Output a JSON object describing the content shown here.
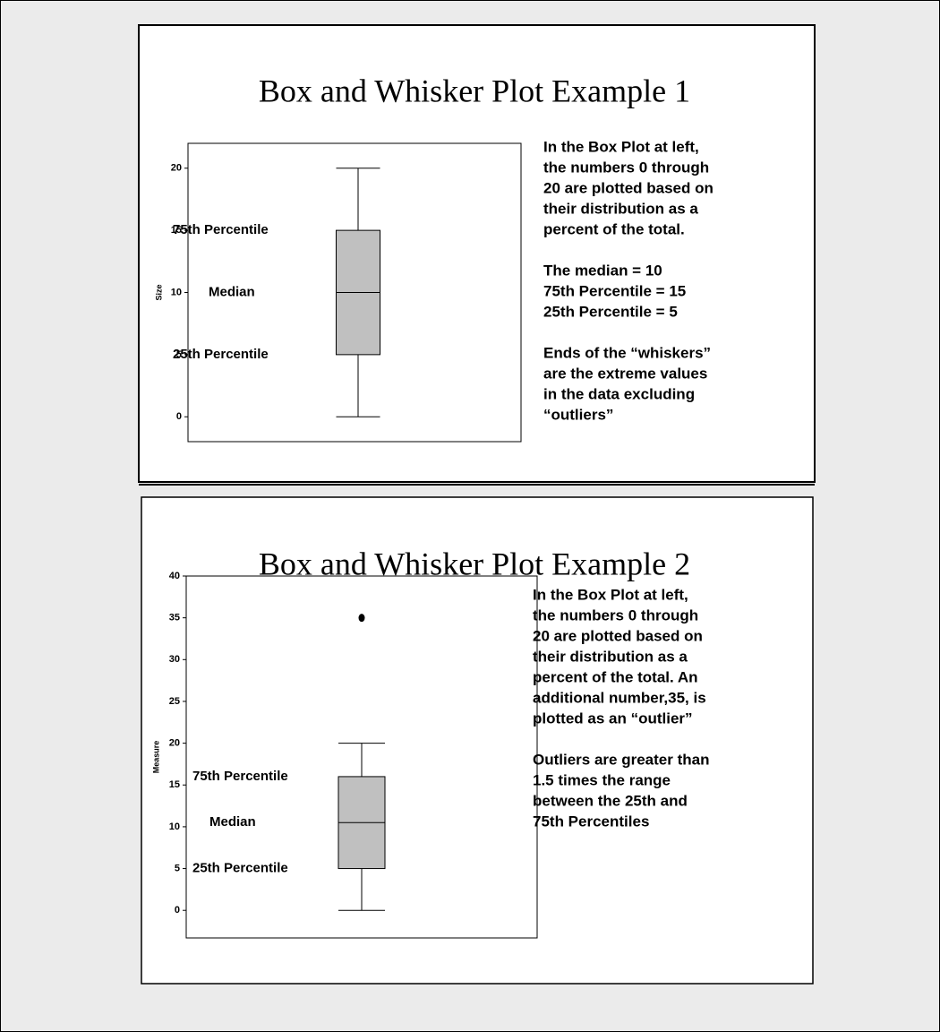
{
  "chart_data": [
    {
      "type": "box",
      "title": "Box and Whisker Plot Example 1",
      "y_label": "Size",
      "ylim": [
        -2,
        22
      ],
      "yticks": [
        0,
        5,
        10,
        15,
        20
      ],
      "box": {
        "min": 0,
        "q1": 5,
        "median": 10,
        "q3": 15,
        "max": 20
      },
      "outliers": [],
      "color": "#c0c0c0",
      "box_labels": {
        "q3": "75th Percentile",
        "median": "Median",
        "q1": "25th Percentile"
      },
      "paragraphs": [
        [
          "In the Box Plot at left,",
          "the numbers 0 through",
          "20 are plotted based on",
          "their distribution as a",
          "percent of the total."
        ],
        [
          "The median = 10",
          "75th Percentile = 15",
          "25th Percentile = 5"
        ],
        [
          "Ends of the “whiskers”",
          "are the extreme values",
          "in the data excluding",
          "“outliers”"
        ]
      ]
    },
    {
      "type": "box",
      "title": "Box and Whisker Plot Example 2",
      "y_label": "Measure",
      "ylim": [
        -3.3,
        40
      ],
      "yticks": [
        0,
        5,
        10,
        15,
        20,
        25,
        30,
        35,
        40
      ],
      "box": {
        "min": 0,
        "q1": 5,
        "median": 10.5,
        "q3": 16,
        "max": 20
      },
      "outliers": [
        35
      ],
      "color": "#c0c0c0",
      "box_labels": {
        "q3": "75th Percentile",
        "median": "Median",
        "q1": "25th Percentile"
      },
      "paragraphs": [
        [
          "In the Box Plot at left,",
          "the numbers 0 through",
          "20 are plotted based on",
          "their distribution as a",
          "percent of the total.  An",
          "additional number,35, is",
          "plotted as an “outlier”"
        ],
        [
          "Outliers are greater than",
          "1.5 times the range",
          "between the 25th and",
          "75th Percentiles"
        ]
      ]
    }
  ]
}
